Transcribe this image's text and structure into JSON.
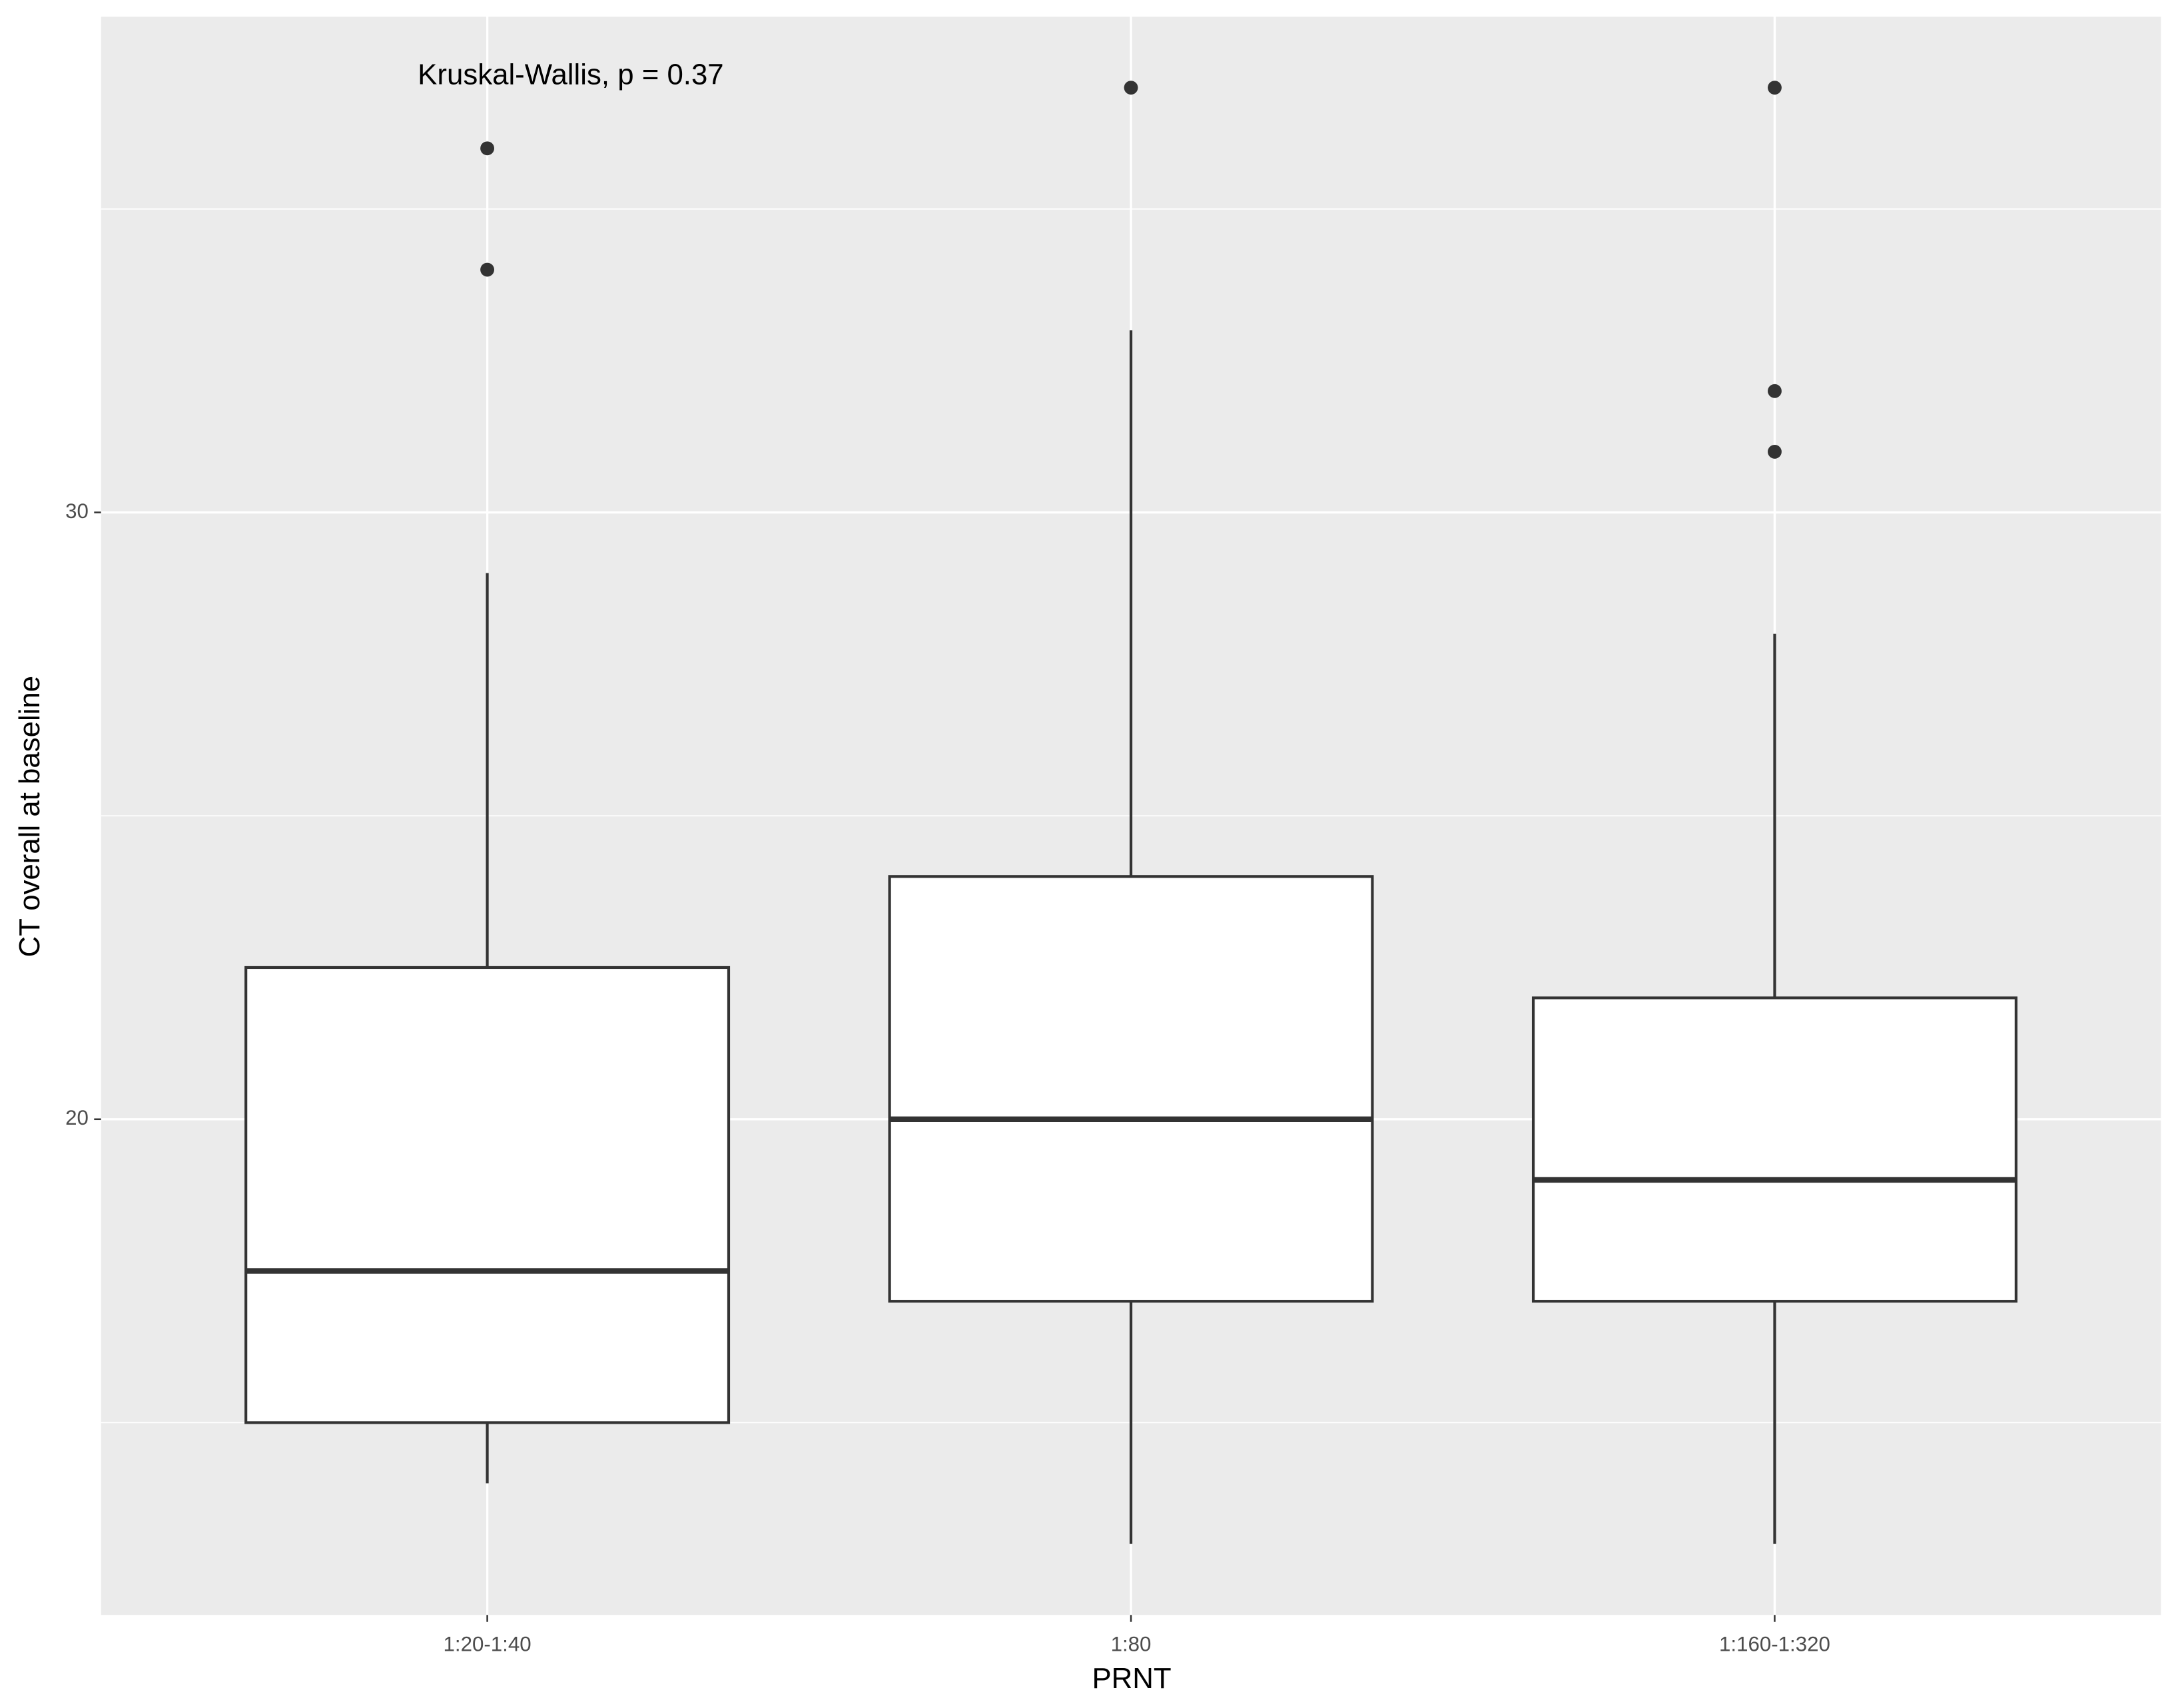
{
  "chart_data": {
    "type": "box",
    "annotation": "Kruskal-Wallis, p = 0.37",
    "x_label": "PRNT",
    "y_label": "CT overall at baseline",
    "categories": [
      "1:20-1:40",
      "1:80",
      "1:160-1:320"
    ],
    "boxes": [
      {
        "whisker_low": 14,
        "q1": 15,
        "median": 17.5,
        "q3": 22.5,
        "whisker_high": 29,
        "outliers": [
          36,
          34
        ]
      },
      {
        "whisker_low": 13,
        "q1": 17,
        "median": 20,
        "q3": 24,
        "whisker_high": 33,
        "outliers": [
          37
        ]
      },
      {
        "whisker_low": 13,
        "q1": 17,
        "median": 19,
        "q3": 22,
        "whisker_high": 28,
        "outliers": [
          37,
          32,
          31
        ]
      }
    ],
    "fill": "#ffffff",
    "stroke": "#333333",
    "ylim": [
      11.83,
      38.17
    ],
    "yticks": [
      20,
      30
    ],
    "minor_yticks": [
      15,
      25,
      35
    ],
    "grid": true
  }
}
